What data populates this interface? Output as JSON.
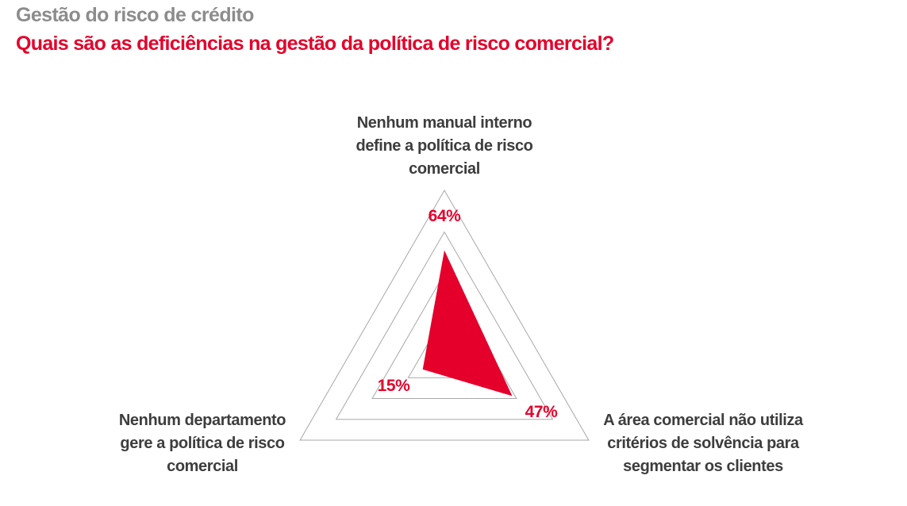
{
  "header": {
    "title": "Gestão do risco de crédito",
    "subtitle": "Quais são as deficiências na gestão da política de risco comercial?"
  },
  "colors": {
    "accent_red": "#E4002B",
    "title_gray": "#8C8C8C",
    "label_dark_gray": "#3D3D3D",
    "grid_gray": "#A8A8A8",
    "background": "#FFFFFF"
  },
  "chart_data": {
    "type": "radar",
    "shape": "triangle",
    "title": "Quais são as deficiências na gestão da política de risco comercial?",
    "scale_max": 100,
    "grid_levels": [
      25,
      50,
      75,
      100
    ],
    "grid_color": "#A8A8A8",
    "fill_color": "#E4002B",
    "legend": "none",
    "axes": [
      {
        "position": "top",
        "label": "Nenhum manual interno define a política de risco comercial",
        "value": 64,
        "display": "64%"
      },
      {
        "position": "bottom-right",
        "label": "A área comercial não utiliza critérios de solvência para segmentar os clientes",
        "value": 47,
        "display": "47%"
      },
      {
        "position": "bottom-left",
        "label": "Nenhum departamento gere a política de risco comercial",
        "value": 15,
        "display": "15%"
      }
    ]
  }
}
